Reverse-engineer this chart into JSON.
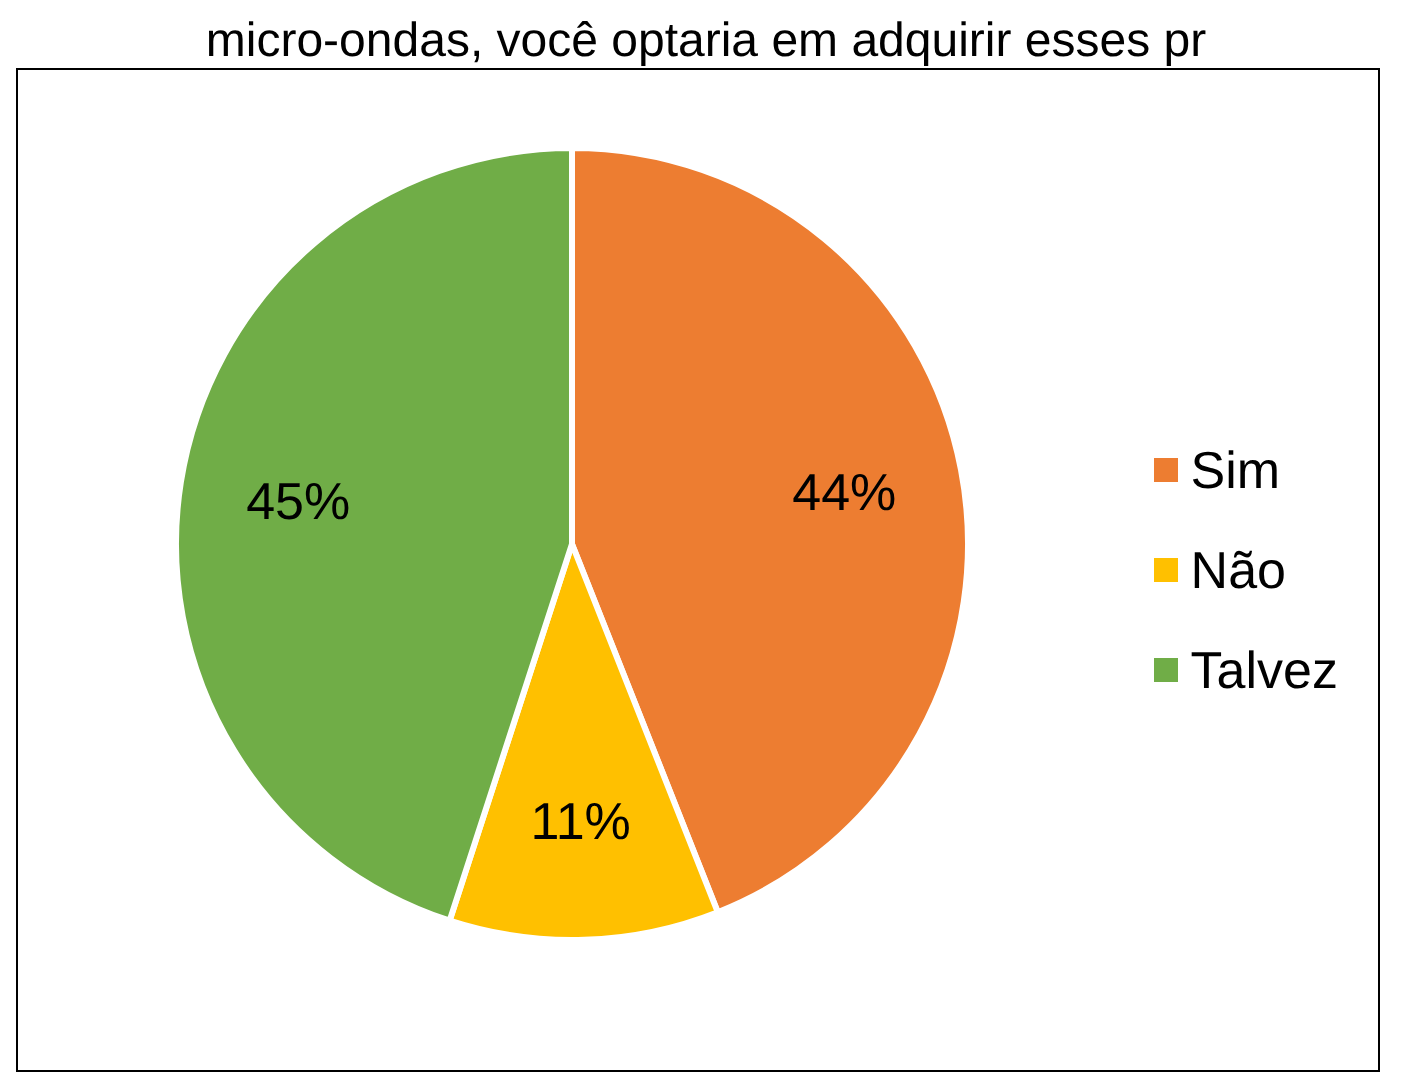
{
  "chart_data": {
    "type": "pie",
    "title": "micro-ondas, você optaria em adquirir esses pr",
    "categories": [
      "Sim",
      "Não",
      "Talvez"
    ],
    "values": [
      44,
      11,
      45
    ],
    "value_labels": [
      "44%",
      "11%",
      "45%"
    ],
    "colors": [
      "#ed7d31",
      "#ffc000",
      "#70ad47"
    ],
    "legend": "right"
  }
}
